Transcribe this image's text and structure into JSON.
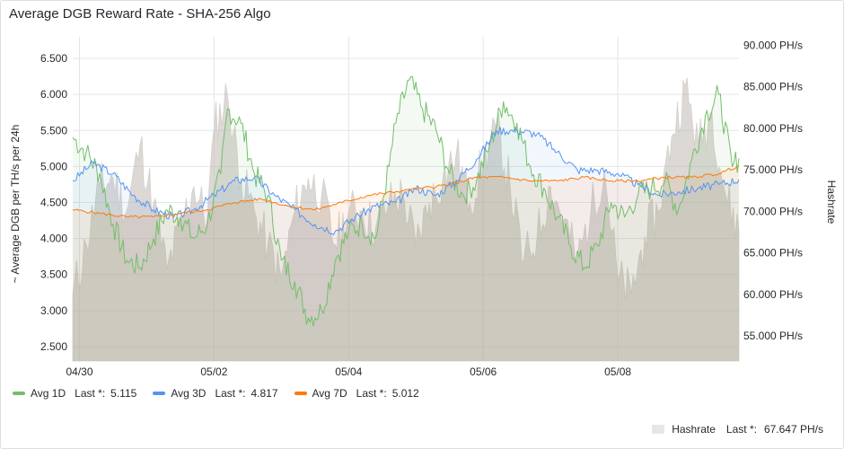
{
  "panel": {
    "title": "Average DGB Reward Rate - SHA-256 Algo"
  },
  "legend": {
    "avg1d": {
      "name": "Avg 1D",
      "stat": "Last *:",
      "value": "5.115"
    },
    "avg3d": {
      "name": "Avg 3D",
      "stat": "Last *:",
      "value": "4.817"
    },
    "avg7d": {
      "name": "Avg 7D",
      "stat": "Last *:",
      "value": "5.012"
    },
    "hashrate": {
      "name": "Hashrate",
      "stat": "Last *:",
      "value": "67.647 PH/s"
    }
  },
  "chart_data": {
    "type": "line",
    "ylabel_left": "~ Average DGB per TH/s per 24h",
    "ylabel_right": "Hashrate",
    "left_ticks": [
      "2.500",
      "3.000",
      "3.500",
      "4.000",
      "4.500",
      "5.000",
      "5.500",
      "6.000",
      "6.500"
    ],
    "right_ticks": [
      "55.000 PH/s",
      "60.000 PH/s",
      "65.000 PH/s",
      "70.000 PH/s",
      "75.000 PH/s",
      "80.000 PH/s",
      "85.000 PH/s",
      "90.000 PH/s"
    ],
    "x_ticks": [
      "04/30",
      "05/02",
      "05/04",
      "05/06",
      "05/08"
    ],
    "x_tick_days": [
      0,
      2,
      4,
      6,
      8
    ],
    "x_range_days": [
      -0.1,
      9.8
    ],
    "ylim_left": [
      2.3,
      6.8
    ],
    "ylim_right": [
      52,
      91
    ],
    "grid": true,
    "colors": {
      "avg1d": "#73bf69",
      "avg3d": "#5794f2",
      "avg7d": "#ff780a",
      "hashrate": "#c9c5c0"
    },
    "series": [
      {
        "name": "Avg 1D",
        "key": "avg1d",
        "axis": "left",
        "x": [
          -0.1,
          0.1,
          0.3,
          0.5,
          0.7,
          0.9,
          1.1,
          1.3,
          1.5,
          1.7,
          1.9,
          2.1,
          2.2,
          2.4,
          2.6,
          2.8,
          3.0,
          3.2,
          3.4,
          3.6,
          3.8,
          4.0,
          4.2,
          4.4,
          4.6,
          4.7,
          4.9,
          5.1,
          5.3,
          5.5,
          5.7,
          5.9,
          6.1,
          6.3,
          6.5,
          6.7,
          6.9,
          7.1,
          7.3,
          7.5,
          7.7,
          7.9,
          8.1,
          8.3,
          8.5,
          8.7,
          8.9,
          9.1,
          9.3,
          9.5,
          9.7,
          9.8
        ],
        "y": [
          5.4,
          5.2,
          4.9,
          4.2,
          3.7,
          3.6,
          4.0,
          4.4,
          4.3,
          4.0,
          4.2,
          4.9,
          5.8,
          5.6,
          4.9,
          4.6,
          3.7,
          3.4,
          2.9,
          3.0,
          3.7,
          4.1,
          4.2,
          4.0,
          5.0,
          5.6,
          6.2,
          5.8,
          5.5,
          4.9,
          4.6,
          4.8,
          5.3,
          5.9,
          5.6,
          5.0,
          4.7,
          4.3,
          3.9,
          3.6,
          3.9,
          4.5,
          4.3,
          4.6,
          4.7,
          4.8,
          4.4,
          5.1,
          5.7,
          6.0,
          5.0,
          5.115
        ]
      },
      {
        "name": "Avg 3D",
        "key": "avg3d",
        "axis": "left",
        "x": [
          -0.1,
          0.2,
          0.5,
          0.8,
          1.1,
          1.4,
          1.7,
          2.0,
          2.3,
          2.6,
          2.9,
          3.2,
          3.5,
          3.8,
          4.1,
          4.4,
          4.7,
          5.0,
          5.3,
          5.6,
          5.9,
          6.2,
          6.5,
          6.8,
          7.1,
          7.4,
          7.7,
          8.0,
          8.3,
          8.6,
          8.9,
          9.2,
          9.5,
          9.8
        ],
        "y": [
          4.8,
          5.05,
          4.9,
          4.6,
          4.4,
          4.3,
          4.4,
          4.6,
          4.8,
          4.85,
          4.6,
          4.4,
          4.2,
          4.1,
          4.3,
          4.45,
          4.5,
          4.7,
          4.6,
          4.8,
          5.1,
          5.5,
          5.5,
          5.45,
          5.2,
          4.95,
          4.95,
          4.9,
          4.75,
          4.6,
          4.65,
          4.7,
          4.75,
          4.817
        ]
      },
      {
        "name": "Avg 7D",
        "key": "avg7d",
        "axis": "left",
        "x": [
          -0.1,
          0.3,
          0.7,
          1.1,
          1.5,
          1.9,
          2.3,
          2.7,
          3.1,
          3.5,
          3.9,
          4.3,
          4.7,
          5.1,
          5.5,
          5.9,
          6.3,
          6.7,
          7.1,
          7.5,
          7.9,
          8.3,
          8.7,
          9.1,
          9.5,
          9.8
        ],
        "y": [
          4.4,
          4.35,
          4.3,
          4.3,
          4.35,
          4.4,
          4.5,
          4.55,
          4.45,
          4.4,
          4.5,
          4.6,
          4.65,
          4.7,
          4.75,
          4.85,
          4.85,
          4.8,
          4.8,
          4.85,
          4.8,
          4.8,
          4.85,
          4.85,
          4.9,
          5.012
        ]
      },
      {
        "name": "Hashrate",
        "key": "hashrate",
        "axis": "right",
        "x": [
          -0.1,
          0.1,
          0.3,
          0.5,
          0.7,
          0.9,
          1.1,
          1.3,
          1.5,
          1.7,
          1.9,
          2.0,
          2.2,
          2.4,
          2.6,
          2.8,
          3.0,
          3.2,
          3.4,
          3.6,
          3.8,
          4.0,
          4.2,
          4.4,
          4.6,
          4.8,
          5.0,
          5.2,
          5.4,
          5.6,
          5.8,
          6.0,
          6.2,
          6.4,
          6.6,
          6.8,
          7.0,
          7.2,
          7.4,
          7.6,
          7.8,
          8.0,
          8.2,
          8.4,
          8.6,
          8.8,
          9.0,
          9.2,
          9.4,
          9.6,
          9.8
        ],
        "y": [
          60,
          66,
          73,
          74,
          70,
          78,
          71,
          63,
          68,
          73,
          69,
          80,
          84,
          74,
          70,
          66,
          62,
          70,
          74,
          72,
          66,
          70,
          70,
          68,
          71,
          72,
          66,
          71,
          74,
          77,
          71,
          76,
          80,
          73,
          64,
          67,
          73,
          69,
          64,
          70,
          75,
          62,
          60,
          67,
          70,
          79,
          85,
          78,
          82,
          72,
          67.647
        ]
      }
    ]
  }
}
